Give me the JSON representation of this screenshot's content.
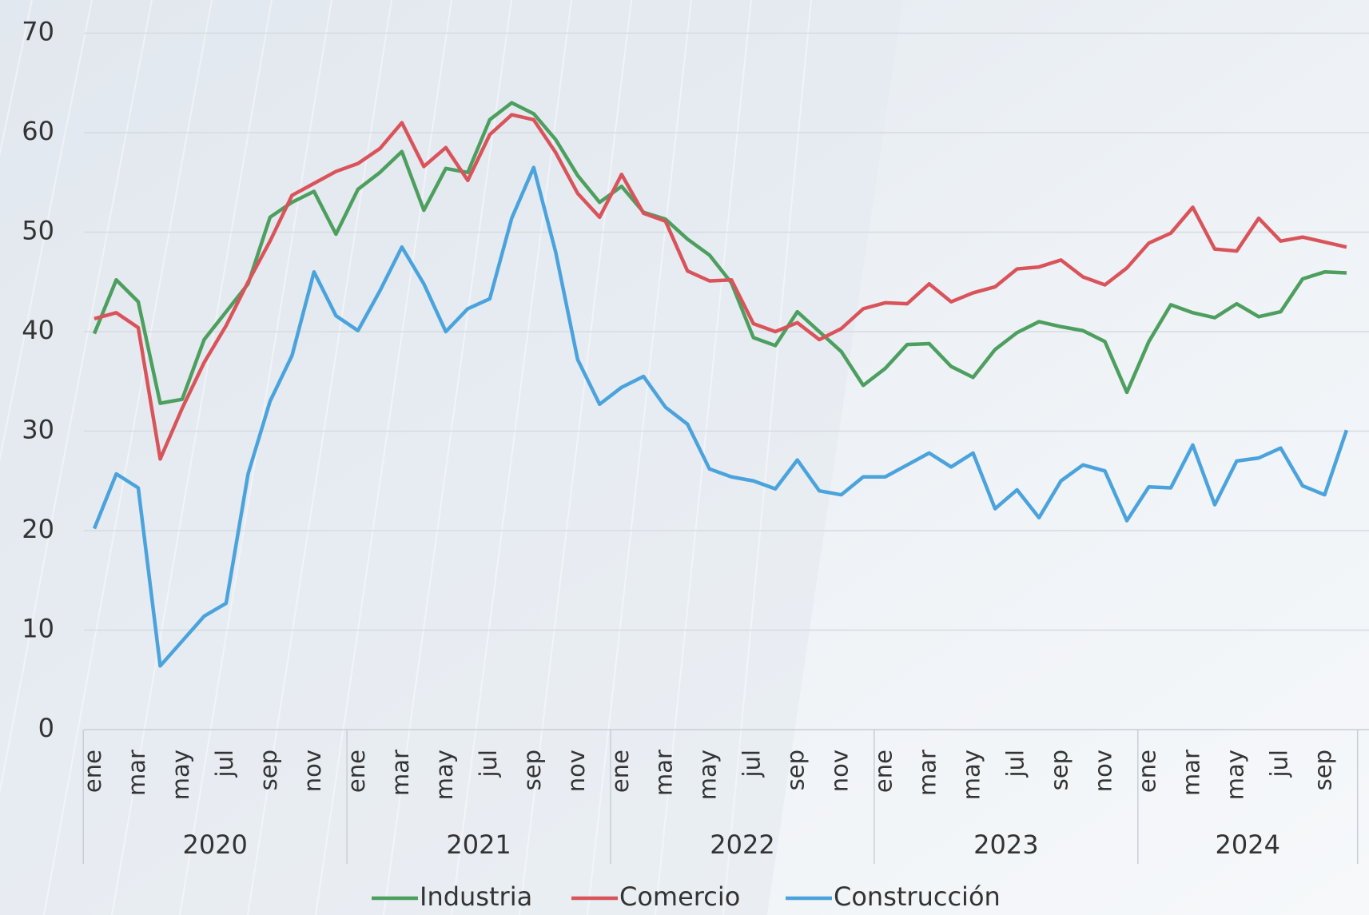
{
  "chart_data": {
    "type": "line",
    "categories": [
      "ene",
      null,
      "mar",
      null,
      "may",
      null,
      "jul",
      null,
      "sep",
      null,
      "nov",
      null,
      "ene",
      null,
      "mar",
      null,
      "may",
      null,
      "jul",
      null,
      "sep",
      null,
      "nov",
      null,
      "ene",
      null,
      "mar",
      null,
      "may",
      null,
      "jul",
      null,
      "sep",
      null,
      "nov",
      null,
      "ene",
      null,
      "mar",
      null,
      "may",
      null,
      "jul",
      null,
      "sep",
      null,
      "nov",
      null,
      "ene",
      null,
      "mar",
      null,
      "may",
      null,
      "jul",
      null,
      "sep",
      null
    ],
    "years": [
      "2020",
      "2021",
      "2022",
      "2023",
      "2024"
    ],
    "ylim": [
      0,
      70
    ],
    "yticks": [
      0,
      10,
      20,
      30,
      40,
      50,
      60,
      70
    ],
    "grid": true,
    "legend": "bottom",
    "series": [
      {
        "name": "Industria",
        "color": "#4c9f5e",
        "values": [
          39.8,
          45.2,
          43,
          32.8,
          33.2,
          39.2,
          42,
          44.8,
          51.5,
          53,
          54.1,
          49.8,
          54.3,
          56,
          58.1,
          52.2,
          56.4,
          56,
          61.3,
          63,
          61.9,
          59.3,
          55.7,
          53,
          54.6,
          52,
          51.3,
          49.3,
          47.7,
          44.9,
          39.4,
          38.6,
          42,
          40,
          38,
          34.6,
          36.3,
          38.7,
          38.8,
          36.5,
          35.4,
          38.2,
          39.9,
          41,
          40.5,
          40.1,
          39,
          33.9,
          39,
          42.7,
          41.9,
          41.4,
          42.8,
          41.5,
          42,
          45.3,
          46,
          45.9
        ]
      },
      {
        "name": "Comercio",
        "color": "#d9545a",
        "values": [
          41.3,
          41.9,
          40.4,
          27.2,
          32.3,
          36.9,
          40.6,
          45,
          49.1,
          53.7,
          54.9,
          56.1,
          56.9,
          58.4,
          61,
          56.6,
          58.5,
          55.2,
          59.8,
          61.8,
          61.3,
          58,
          53.9,
          51.5,
          55.8,
          51.9,
          51.1,
          46.1,
          45.1,
          45.2,
          40.8,
          40,
          40.9,
          39.2,
          40.3,
          42.3,
          42.9,
          42.8,
          44.8,
          43,
          43.9,
          44.5,
          46.3,
          46.5,
          47.2,
          45.5,
          44.7,
          46.4,
          48.9,
          49.9,
          52.5,
          48.3,
          48.1,
          51.4,
          49.1,
          49.5,
          49,
          48.5
        ]
      },
      {
        "name": "Construcción",
        "color": "#4aa3dc",
        "values": [
          20.2,
          25.7,
          24.3,
          6.4,
          8.9,
          11.4,
          12.7,
          25.7,
          33,
          37.6,
          46,
          41.6,
          40.1,
          44.1,
          48.5,
          44.8,
          40,
          42.3,
          43.3,
          51.4,
          56.5,
          48,
          37.2,
          32.7,
          34.4,
          35.5,
          32.4,
          30.7,
          26.2,
          25.4,
          25,
          24.2,
          27.1,
          24,
          23.6,
          25.4,
          25.4,
          26.6,
          27.8,
          26.4,
          27.8,
          22.2,
          24.1,
          21.3,
          25,
          26.6,
          26,
          21,
          24.4,
          24.3,
          28.6,
          22.6,
          27,
          27.3,
          28.3,
          24.5,
          23.6,
          30.1
        ]
      }
    ]
  }
}
